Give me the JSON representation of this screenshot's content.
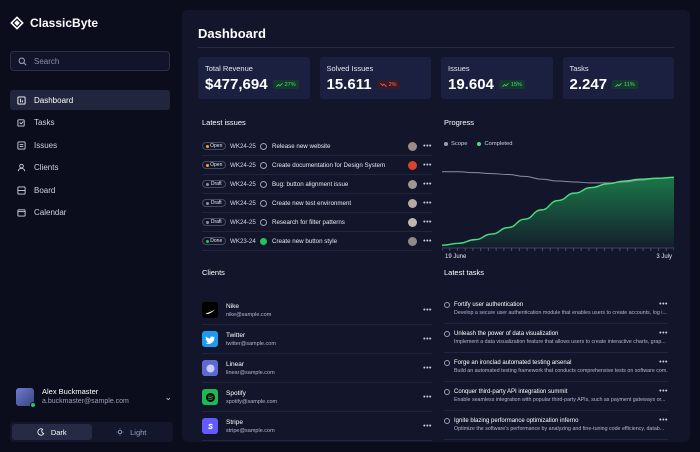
{
  "app": {
    "name": "ClassicByte"
  },
  "search": {
    "placeholder": "Search"
  },
  "nav": {
    "items": [
      {
        "label": "Dashboard",
        "icon": "dashboard-icon",
        "active": true
      },
      {
        "label": "Tasks",
        "icon": "tasks-icon"
      },
      {
        "label": "Issues",
        "icon": "issues-icon"
      },
      {
        "label": "Clients",
        "icon": "clients-icon"
      },
      {
        "label": "Board",
        "icon": "board-icon"
      },
      {
        "label": "Calendar",
        "icon": "calendar-icon"
      }
    ]
  },
  "user": {
    "name": "Alex Buckmaster",
    "email": "a.buckmaster@sample.com"
  },
  "theme": {
    "dark_label": "Dark",
    "light_label": "Light"
  },
  "page": {
    "title": "Dashboard"
  },
  "stats": [
    {
      "label": "Total Revenue",
      "value": "$477,694",
      "change": "27%",
      "trend": "up"
    },
    {
      "label": "Solved Issues",
      "value": "15.611",
      "change": "2%",
      "trend": "down"
    },
    {
      "label": "Issues",
      "value": "19.604",
      "change": "15%",
      "trend": "up"
    },
    {
      "label": "Tasks",
      "value": "2.247",
      "change": "11%",
      "trend": "up"
    }
  ],
  "issues": {
    "title": "Latest issues",
    "rows": [
      {
        "status": "Open",
        "status_color": "#f5a524",
        "code": "WK24-25",
        "title": "Release new website",
        "done": false,
        "avatar": "#9a8c84"
      },
      {
        "status": "Open",
        "status_color": "#f5a524",
        "code": "WK24-25",
        "title": "Create documentation for Design System",
        "done": false,
        "avatar": "#d9442b"
      },
      {
        "status": "Draft",
        "status_color": "#8a8fa8",
        "code": "WK24-25",
        "title": "Bug: button alignment issue",
        "done": false,
        "avatar": "#a0968e"
      },
      {
        "status": "Draft",
        "status_color": "#8a8fa8",
        "code": "WK24-25",
        "title": "Create new test environment",
        "done": false,
        "avatar": "#b8aaa2"
      },
      {
        "status": "Draft",
        "status_color": "#8a8fa8",
        "code": "WK24-25",
        "title": "Research for filter patterns",
        "done": false,
        "avatar": "#c2b5ad"
      },
      {
        "status": "Done",
        "status_color": "#22c55e",
        "code": "WK23-24",
        "title": "Create new button style",
        "done": true,
        "avatar": "#8e8a86"
      }
    ]
  },
  "progress": {
    "title": "Progress",
    "legend": [
      {
        "name": "Scope",
        "color": "#9aa0b8"
      },
      {
        "name": "Completed",
        "color": "#4ade80"
      }
    ],
    "x_start": "19 June",
    "x_end": "3 July"
  },
  "chart_data": {
    "type": "area",
    "title": "Progress",
    "x_labels": [
      "19 June",
      "3 July"
    ],
    "series": [
      {
        "name": "Scope",
        "values": [
          0.82,
          0.82,
          0.81,
          0.8,
          0.79,
          0.77,
          0.74,
          0.72,
          0.71,
          0.7,
          0.7,
          0.71,
          0.73,
          0.75,
          0.76
        ]
      },
      {
        "name": "Completed",
        "values": [
          0.03,
          0.05,
          0.09,
          0.15,
          0.22,
          0.31,
          0.41,
          0.51,
          0.59,
          0.65,
          0.69,
          0.72,
          0.74,
          0.75,
          0.76
        ]
      }
    ],
    "grid": false,
    "legend_position": "top-left"
  },
  "clients": {
    "title": "Clients",
    "items": [
      {
        "name": "Nike",
        "email": "nike@sample.com",
        "logo_color": "#000000",
        "icon": "nike-icon"
      },
      {
        "name": "Twitter",
        "email": "twitter@sample.com",
        "logo_color": "#1d9bf0",
        "icon": "twitter-icon"
      },
      {
        "name": "Linear",
        "email": "linear@sample.com",
        "logo_color": "#5e6ad2",
        "icon": "linear-icon"
      },
      {
        "name": "Spotify",
        "email": "spotify@sample.com",
        "logo_color": "#1db954",
        "icon": "spotify-icon"
      },
      {
        "name": "Stripe",
        "email": "stripe@sample.com",
        "logo_color": "#635bff",
        "icon": "stripe-icon"
      }
    ]
  },
  "tasks": {
    "title": "Latest tasks",
    "items": [
      {
        "title": "Fortify user authentication",
        "desc": "Develop a secure user authentication module that enables users to create accounts, log i..."
      },
      {
        "title": "Unleash the power of data visualization",
        "desc": "Implement a data visualization feature that allows users to create interactive charts, grap..."
      },
      {
        "title": "Forge an ironclad automated testing arsenal",
        "desc": "Build an automated testing framework that conducts comprehensive tests on software com..."
      },
      {
        "title": "Conquer third-party API integration summit",
        "desc": "Enable seamless integration with popular third-party APIs, such as payment gateways or..."
      },
      {
        "title": "Ignite blazing performance optimization inferno",
        "desc": "Optimize the software's performance by analyzing and fine-tuning code efficiency, datab..."
      }
    ]
  }
}
